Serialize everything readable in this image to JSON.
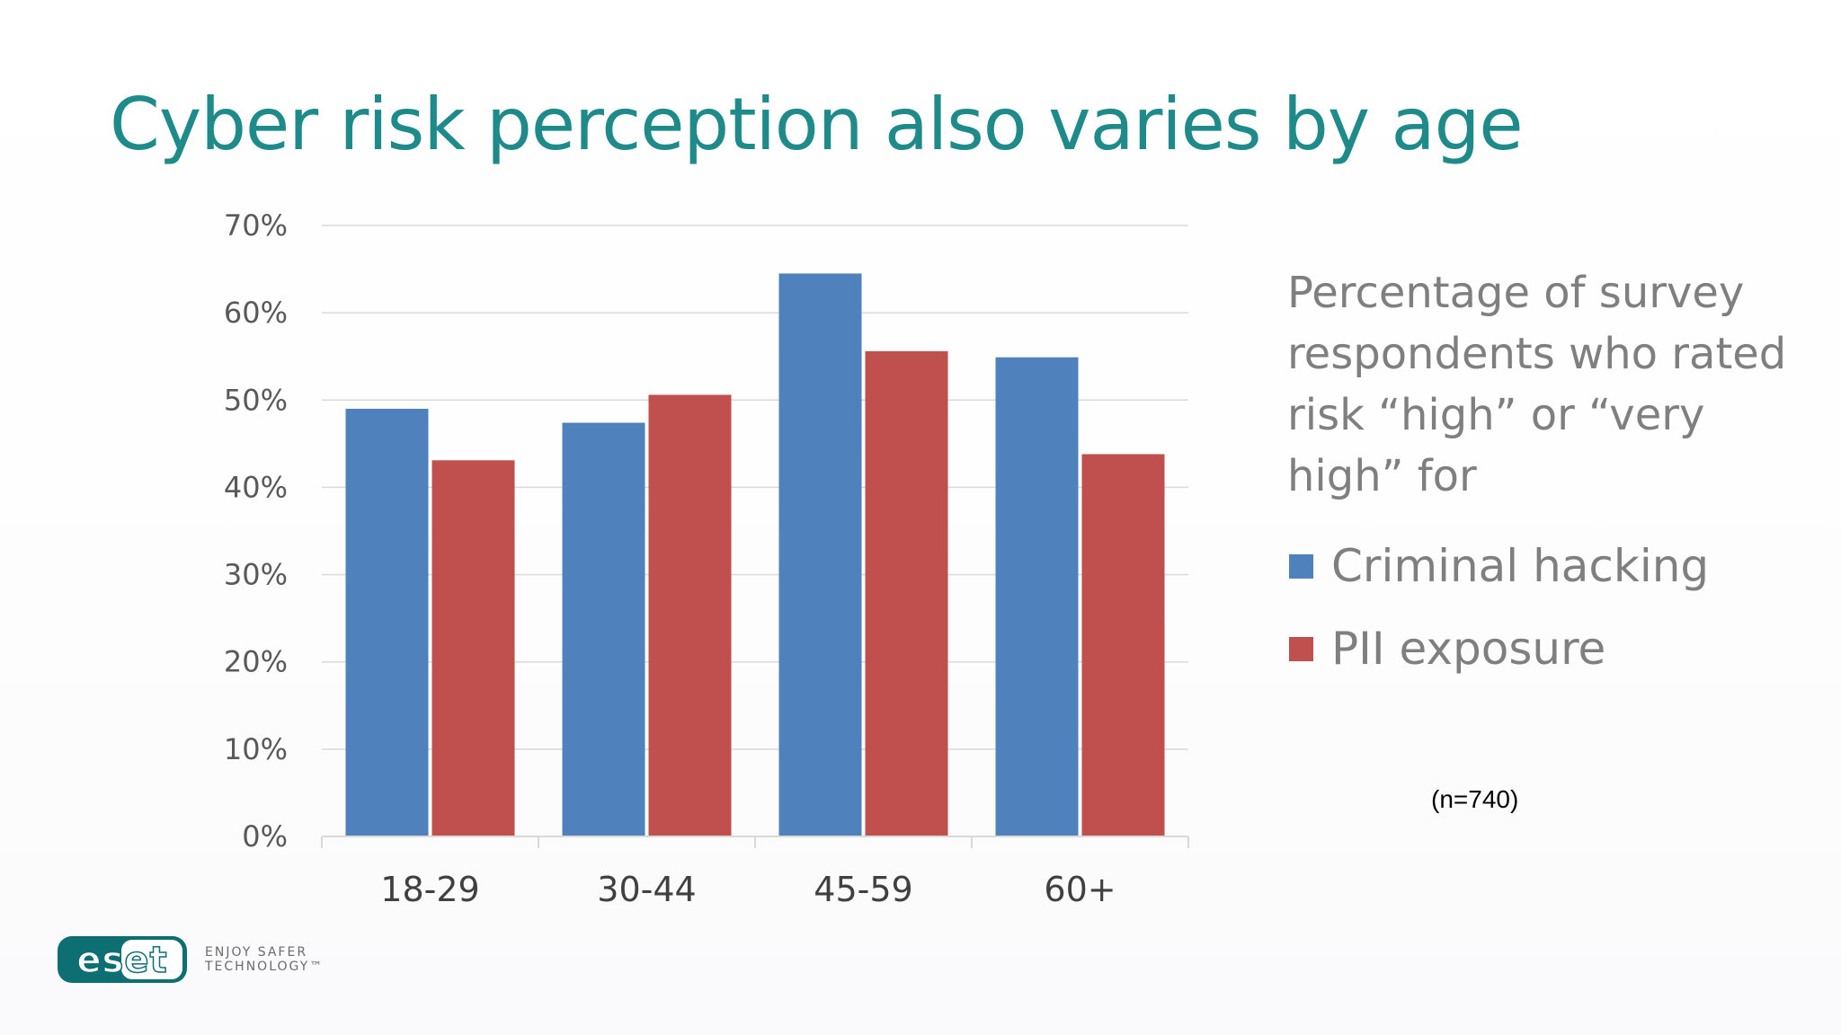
{
  "slide": {
    "title": "Cyber risk perception also varies by age",
    "description": "Percentage of survey respondents who rated risk “high” or “very high” for",
    "note": "(n=740)",
    "logo": {
      "text": "eset",
      "tagline_line1": "ENJOY SAFER",
      "tagline_line2": "TECHNOLOGY™"
    }
  },
  "chart_data": {
    "type": "bar",
    "categories": [
      "18-29",
      "30-44",
      "45-59",
      "60+"
    ],
    "series": [
      {
        "name": "Criminal hacking",
        "color": "#4f81bd",
        "values": [
          49,
          47.4,
          64.5,
          54.9
        ]
      },
      {
        "name": "PII exposure",
        "color": "#c0504d",
        "values": [
          43.1,
          50.6,
          55.6,
          43.8
        ]
      }
    ],
    "title": "",
    "xlabel": "",
    "ylabel": "",
    "ylim": [
      0,
      70
    ],
    "yticks": [
      "0%",
      "10%",
      "20%",
      "30%",
      "40%",
      "50%",
      "60%",
      "70%"
    ],
    "grid": true,
    "legend": "right"
  }
}
